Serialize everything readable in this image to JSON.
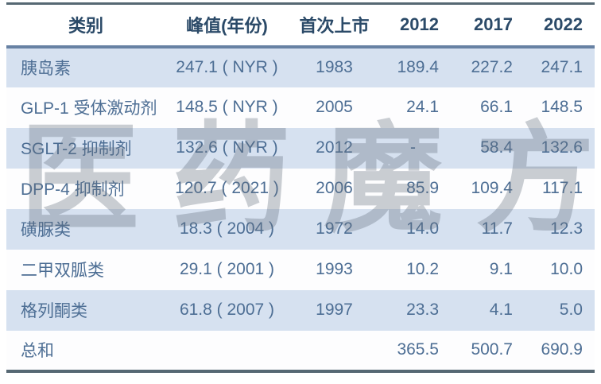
{
  "chart_data": {
    "type": "table",
    "columns": [
      "类别",
      "峰值(年份)",
      "首次上市",
      "2012",
      "2017",
      "2022"
    ],
    "rows": [
      [
        "胰岛素",
        "247.1 ( NYR )",
        "1983",
        "189.4",
        "227.2",
        "247.1"
      ],
      [
        "GLP-1 受体激动剂",
        "148.5 ( NYR )",
        "2005",
        "24.1",
        "66.1",
        "148.5"
      ],
      [
        "SGLT-2 抑制剂",
        "132.6 ( NYR )",
        "2012",
        "-",
        "58.4",
        "132.6"
      ],
      [
        "DPP-4 抑制剂",
        "120.7 ( 2021 )",
        "2006",
        "85.9",
        "109.4",
        "117.1"
      ],
      [
        "磺脲类",
        "18.3 ( 2004 )",
        "1972",
        "14.0",
        "11.7",
        "12.3"
      ],
      [
        "二甲双胍类",
        "29.1 ( 2001 )",
        "1993",
        "10.2",
        "9.1",
        "10.0"
      ],
      [
        "格列酮类",
        "61.8 ( 2007 )",
        "1997",
        "23.3",
        "4.1",
        "5.0"
      ],
      [
        "总和",
        "",
        "",
        "365.5",
        "500.7",
        "690.9"
      ]
    ]
  },
  "watermark": {
    "text": "医药魔方",
    "chars": [
      "医",
      "药",
      "魔",
      "方"
    ]
  },
  "colors": {
    "outer_rule": "#566873",
    "header_rule": "#6781a3",
    "row_alt_blue": "#d6e1f0",
    "header_text": "#2b4a68",
    "body_text": "#4d6e94",
    "watermark_gray": "rgba(100,112,126,0.34)"
  }
}
